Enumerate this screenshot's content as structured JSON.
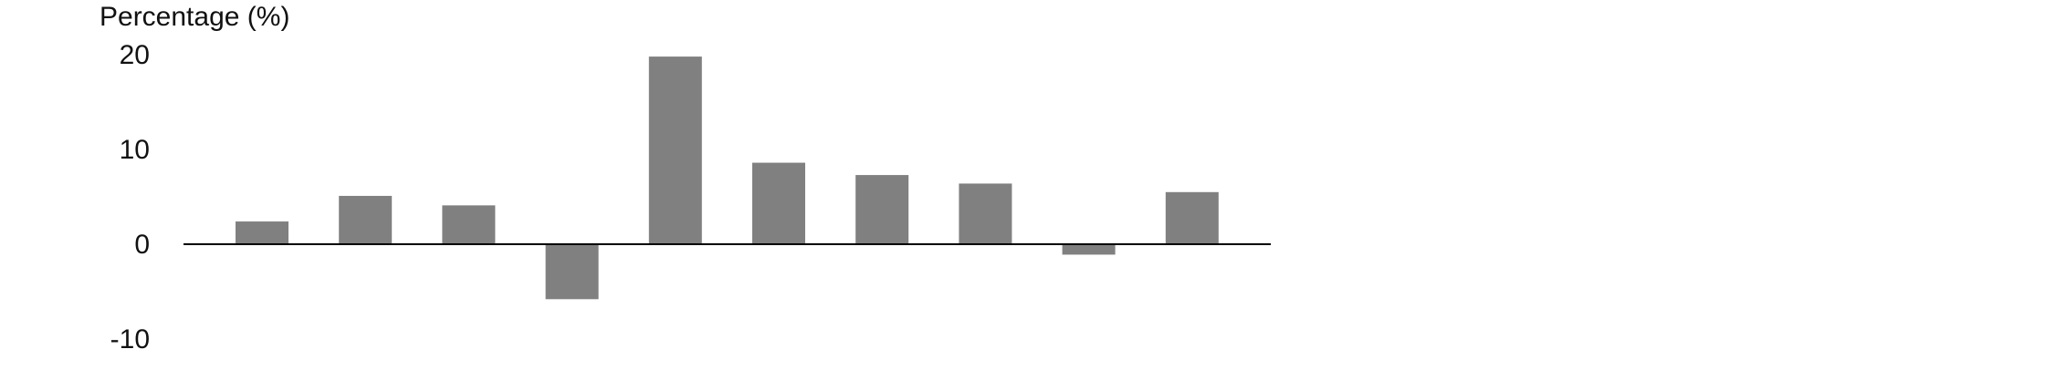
{
  "chart_data": {
    "type": "bar",
    "title": "",
    "xlabel": "",
    "ylabel": "Percentage (%)",
    "ylim": [
      -10,
      20
    ],
    "yticks": [
      20,
      10,
      0,
      -10
    ],
    "values": [
      2.4,
      5.1,
      4.1,
      -5.8,
      19.8,
      8.6,
      7.3,
      6.4,
      -1.1,
      5.5
    ],
    "bar_color": "#808080",
    "axis_color": "#000000",
    "grid": false,
    "legend": "none"
  }
}
